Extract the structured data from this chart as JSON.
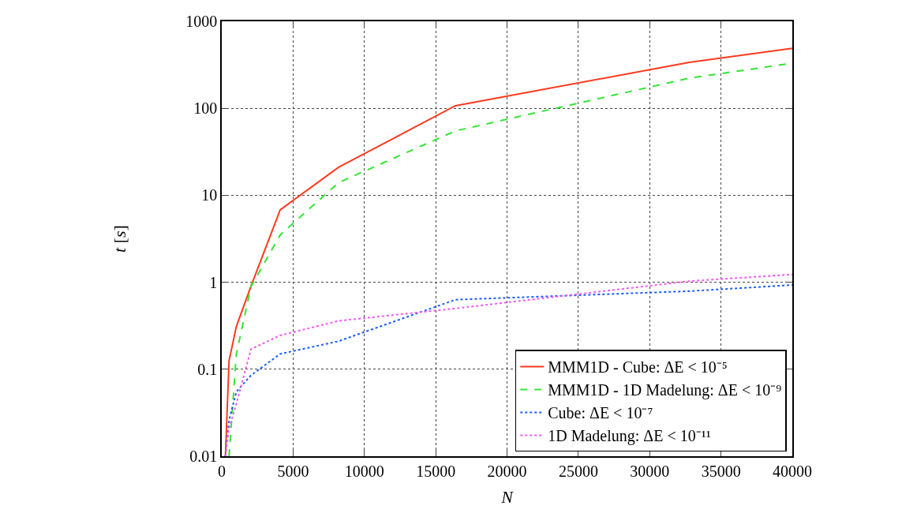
{
  "chart_data": {
    "type": "line",
    "xlabel": "N",
    "ylabel": "t [s]",
    "x": [
      256,
      512,
      1024,
      2048,
      4096,
      8192,
      16384,
      32768,
      40000
    ],
    "series": [
      {
        "name": "MMM1D - Cube: ΔE < 10⁻⁵",
        "color": "#ff3a1f",
        "line_style": "solid",
        "values": [
          0.01,
          0.125,
          0.31,
          0.9,
          6.8,
          21,
          107,
          337,
          490
        ]
      },
      {
        "name": "MMM1D - 1D Madelung: ΔE < 10⁻⁹",
        "color": "#33e633",
        "line_style": "dashed",
        "values": [
          null,
          0.01,
          0.15,
          0.89,
          3.5,
          14,
          55,
          222,
          330
        ]
      },
      {
        "name": "Cube: ΔE < 10⁻⁷",
        "color": "#1a5cff",
        "line_style": "dotted",
        "values": [
          0.01,
          0.026,
          0.055,
          0.085,
          0.15,
          0.21,
          0.63,
          0.79,
          0.93
        ]
      },
      {
        "name": "1D Madelung: ΔE < 10⁻¹¹",
        "color": "#f25af2",
        "line_style": "dotted",
        "values": [
          0.01,
          0.021,
          0.04,
          0.17,
          0.245,
          0.36,
          0.5,
          1.03,
          1.23
        ]
      }
    ],
    "log": "y",
    "xlim": [
      0,
      40000
    ],
    "xticks": [
      0,
      5000,
      10000,
      15000,
      20000,
      25000,
      30000,
      35000,
      40000
    ],
    "ylim": [
      0.01,
      1000
    ],
    "yticks": [
      0.01,
      0.1,
      1,
      10,
      100,
      1000
    ],
    "grid": true,
    "legend": "bottom right",
    "marker": "none"
  }
}
